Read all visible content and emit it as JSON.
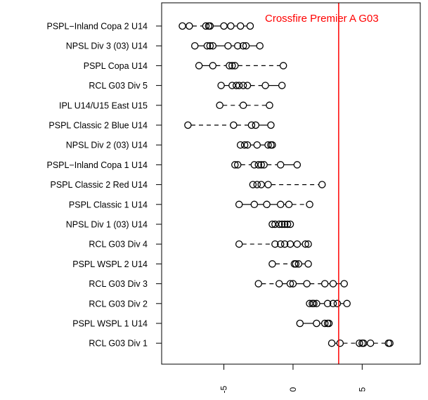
{
  "chart_data": {
    "type": "scatter",
    "orientation": "horizontal dot-and-whisker (one row per division)",
    "title": "",
    "xlabel": "",
    "ylabel": "",
    "xlim": [
      -9.5,
      9.2
    ],
    "x_ticks": [
      -5,
      0,
      5
    ],
    "x_tick_labels": [
      "-5",
      "0",
      "5"
    ],
    "x_tick_label_rotation": "vertical",
    "grid": false,
    "marker": "open circle",
    "colors": {
      "points": "#000000",
      "reference_line": "#ff0000",
      "annotation": "#ff0000"
    },
    "reference_line": {
      "x": 3.3,
      "label": "Crossfire Premier A G03"
    },
    "categories": [
      "PSPL−Inland Copa 2 U14",
      "NPSL Div 3 (03) U14",
      "PSPL Copa U14",
      "RCL G03 Div 5",
      "IPL U14/U15 East U15",
      "PSPL Classic 2 Blue U14",
      "NPSL Div 2 (03) U14",
      "PSPL−Inland Copa 1 U14",
      "PSPL Classic 2 Red U14",
      "PSPL Classic 1 U14",
      "NPSL Div 1 (03) U14",
      "RCL G03 Div 4",
      "PSPL WSPL 2 U14",
      "RCL G03 Div 3",
      "RCL G03 Div 2",
      "PSPL WSPL 1 U14",
      "RCL G03 Div 1"
    ],
    "series": [
      {
        "values": [
          -8.0,
          -7.5,
          -6.3,
          -6.1,
          -6.0,
          -5.0,
          -4.5,
          -3.8,
          -3.1
        ]
      },
      {
        "values": [
          -7.1,
          -6.2,
          -6.0,
          -5.8,
          -4.7,
          -4.0,
          -3.6,
          -3.4,
          -2.4
        ]
      },
      {
        "values": [
          -6.8,
          -5.8,
          -4.6,
          -4.4,
          -4.2,
          -0.7
        ]
      },
      {
        "values": [
          -5.2,
          -4.4,
          -4.1,
          -3.9,
          -3.6,
          -3.3,
          -2.0,
          -0.8
        ]
      },
      {
        "values": [
          -5.3,
          -3.6,
          -1.7
        ]
      },
      {
        "values": [
          -7.6,
          -4.3,
          -3.0,
          -2.7,
          -1.6
        ]
      },
      {
        "values": [
          -3.8,
          -3.5,
          -3.3,
          -2.6,
          -1.8,
          -1.6,
          -1.5
        ]
      },
      {
        "values": [
          -4.2,
          -4.0,
          -2.8,
          -2.5,
          -2.3,
          -2.1,
          -0.9,
          0.3
        ]
      },
      {
        "values": [
          -2.9,
          -2.6,
          -2.3,
          -1.8,
          2.1
        ]
      },
      {
        "values": [
          -3.9,
          -2.8,
          -1.9,
          -0.9,
          -0.3,
          1.2
        ]
      },
      {
        "values": [
          -1.5,
          -1.3,
          -1.0,
          -0.8,
          -0.6,
          -0.4,
          -0.2
        ]
      },
      {
        "values": [
          -3.9,
          -1.3,
          -0.9,
          -0.6,
          -0.2,
          0.3,
          0.9,
          1.1
        ]
      },
      {
        "values": [
          -1.5,
          0.1,
          0.2,
          0.4,
          1.1
        ]
      },
      {
        "values": [
          -2.5,
          -1.0,
          -0.2,
          0.0,
          1.0,
          2.3,
          2.9,
          3.7
        ]
      },
      {
        "values": [
          1.2,
          1.4,
          1.5,
          1.7,
          2.5,
          2.9,
          3.2,
          3.9
        ]
      },
      {
        "values": [
          0.5,
          1.7,
          2.3,
          2.5,
          2.6
        ]
      },
      {
        "values": [
          2.8,
          3.4,
          4.8,
          5.0,
          5.1,
          5.6,
          6.9,
          7.0
        ]
      }
    ]
  }
}
